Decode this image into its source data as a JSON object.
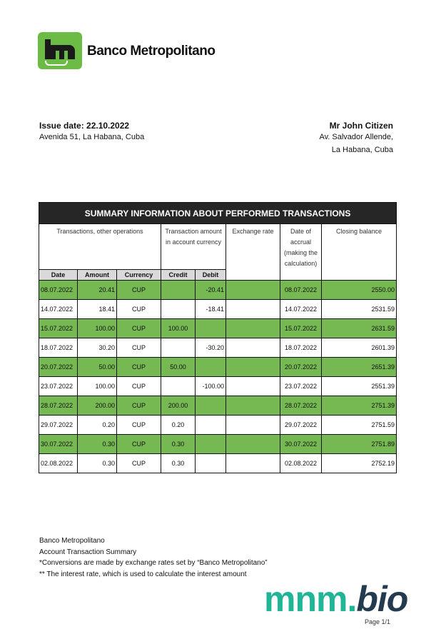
{
  "brand": {
    "name": "Banco Metropolitano",
    "colors": {
      "green": "#76b852",
      "dark": "#262626"
    }
  },
  "issuer": {
    "issue_date": "Issue date: 22.10.2022",
    "address": "Avenida 51, La Habana, Cuba"
  },
  "recipient": {
    "name": "Mr John Citizen",
    "address1": "Av. Salvador Allende,",
    "address2": "La Habana, Cuba"
  },
  "table": {
    "title": "SUMMARY INFORMATION ABOUT PERFORMED TRANSACTIONS",
    "group_headers": [
      "Transactions, other operations",
      "Transaction amount in account currency",
      "Exchange rate",
      "Date of accrual (making the calculation)",
      "Closing balance"
    ],
    "sub_headers": [
      "Date",
      "Amount",
      "Currency",
      "Credit",
      "Debit"
    ],
    "rows": [
      [
        "08.07.2022",
        "20.41",
        "CUP",
        "",
        "-20.41",
        "",
        "08.07.2022",
        "2550.00"
      ],
      [
        "14.07.2022",
        "18.41",
        "CUP",
        "",
        "-18.41",
        "",
        "14.07.2022",
        "2531.59"
      ],
      [
        "15.07.2022",
        "100.00",
        "CUP",
        "100.00",
        "",
        "",
        "15.07.2022",
        "2631.59"
      ],
      [
        "18.07.2022",
        "30.20",
        "CUP",
        "",
        "-30.20",
        "",
        "18.07.2022",
        "2601.39"
      ],
      [
        "20.07.2022",
        "50.00",
        "CUP",
        "50.00",
        "",
        "",
        "20.07.2022",
        "2651.39"
      ],
      [
        "23.07.2022",
        "100.00",
        "CUP",
        "",
        "-100.00",
        "",
        "23.07.2022",
        "2551.39"
      ],
      [
        "28.07.2022",
        "200.00",
        "CUP",
        "200.00",
        "",
        "",
        "28.07.2022",
        "2751.39"
      ],
      [
        "29.07.2022",
        "0.20",
        "CUP",
        "0.20",
        "",
        "",
        "29.07.2022",
        "2751.59"
      ],
      [
        "30.07.2022",
        "0.30",
        "CUP",
        "0.30",
        "",
        "",
        "30.07.2022",
        "2751.89"
      ],
      [
        "02.08.2022",
        "0.30",
        "CUP",
        "0.30",
        "",
        "",
        "02.08.2022",
        "2752.19"
      ]
    ]
  },
  "footer": {
    "lines": [
      "Banco Metropolitano",
      "Account Transaction Summary",
      "*Conversions are made by exchange rates set by “Banco Metropolitano”",
      "** The interest rate, which is used to calculate the interest amount"
    ],
    "page": "Page 1/1"
  },
  "watermark": {
    "part1": "mnm.",
    "part2": "bio"
  }
}
